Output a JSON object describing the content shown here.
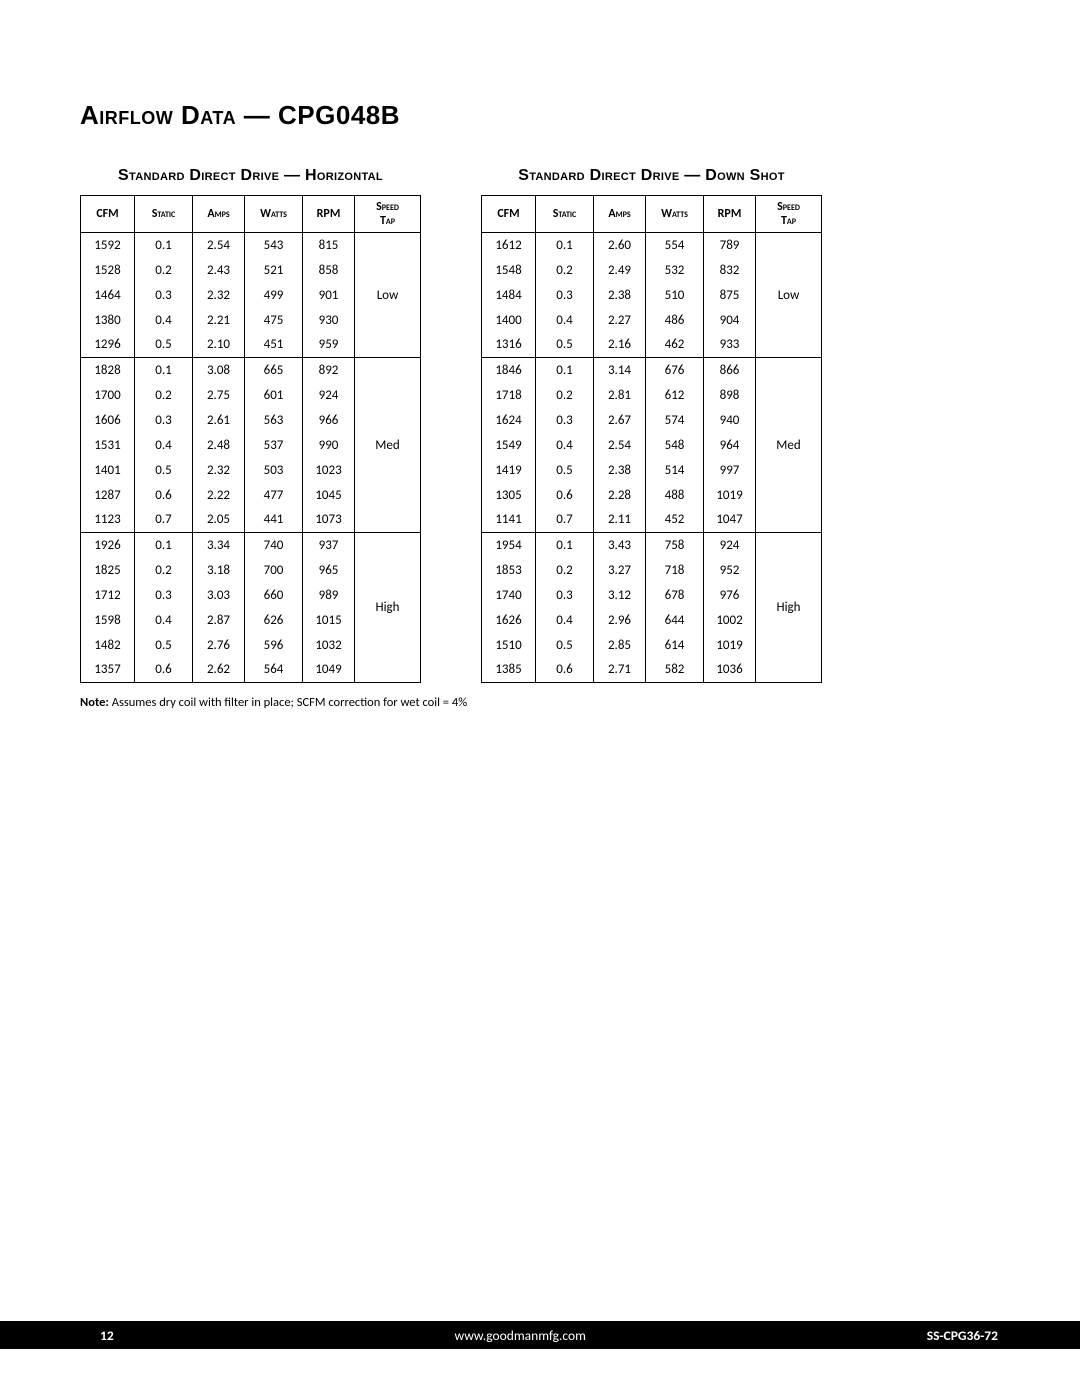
{
  "title": "Airflow Data — CPG048B",
  "left": {
    "title": "Standard Direct Drive — Horizontal",
    "columns": [
      "CFM",
      "Static",
      "Amps",
      "Watts",
      "RPM",
      "Speed Tap"
    ],
    "groups": [
      {
        "tap": "Low",
        "rows": [
          [
            "1592",
            "0.1",
            "2.54",
            "543",
            "815"
          ],
          [
            "1528",
            "0.2",
            "2.43",
            "521",
            "858"
          ],
          [
            "1464",
            "0.3",
            "2.32",
            "499",
            "901"
          ],
          [
            "1380",
            "0.4",
            "2.21",
            "475",
            "930"
          ],
          [
            "1296",
            "0.5",
            "2.10",
            "451",
            "959"
          ]
        ]
      },
      {
        "tap": "Med",
        "rows": [
          [
            "1828",
            "0.1",
            "3.08",
            "665",
            "892"
          ],
          [
            "1700",
            "0.2",
            "2.75",
            "601",
            "924"
          ],
          [
            "1606",
            "0.3",
            "2.61",
            "563",
            "966"
          ],
          [
            "1531",
            "0.4",
            "2.48",
            "537",
            "990"
          ],
          [
            "1401",
            "0.5",
            "2.32",
            "503",
            "1023"
          ],
          [
            "1287",
            "0.6",
            "2.22",
            "477",
            "1045"
          ],
          [
            "1123",
            "0.7",
            "2.05",
            "441",
            "1073"
          ]
        ]
      },
      {
        "tap": "High",
        "rows": [
          [
            "1926",
            "0.1",
            "3.34",
            "740",
            "937"
          ],
          [
            "1825",
            "0.2",
            "3.18",
            "700",
            "965"
          ],
          [
            "1712",
            "0.3",
            "3.03",
            "660",
            "989"
          ],
          [
            "1598",
            "0.4",
            "2.87",
            "626",
            "1015"
          ],
          [
            "1482",
            "0.5",
            "2.76",
            "596",
            "1032"
          ],
          [
            "1357",
            "0.6",
            "2.62",
            "564",
            "1049"
          ]
        ]
      }
    ]
  },
  "right": {
    "title": "Standard Direct Drive — Down Shot",
    "columns": [
      "CFM",
      "Static",
      "Amps",
      "Watts",
      "RPM",
      "Speed Tap"
    ],
    "groups": [
      {
        "tap": "Low",
        "rows": [
          [
            "1612",
            "0.1",
            "2.60",
            "554",
            "789"
          ],
          [
            "1548",
            "0.2",
            "2.49",
            "532",
            "832"
          ],
          [
            "1484",
            "0.3",
            "2.38",
            "510",
            "875"
          ],
          [
            "1400",
            "0.4",
            "2.27",
            "486",
            "904"
          ],
          [
            "1316",
            "0.5",
            "2.16",
            "462",
            "933"
          ]
        ]
      },
      {
        "tap": "Med",
        "rows": [
          [
            "1846",
            "0.1",
            "3.14",
            "676",
            "866"
          ],
          [
            "1718",
            "0.2",
            "2.81",
            "612",
            "898"
          ],
          [
            "1624",
            "0.3",
            "2.67",
            "574",
            "940"
          ],
          [
            "1549",
            "0.4",
            "2.54",
            "548",
            "964"
          ],
          [
            "1419",
            "0.5",
            "2.38",
            "514",
            "997"
          ],
          [
            "1305",
            "0.6",
            "2.28",
            "488",
            "1019"
          ],
          [
            "1141",
            "0.7",
            "2.11",
            "452",
            "1047"
          ]
        ]
      },
      {
        "tap": "High",
        "rows": [
          [
            "1954",
            "0.1",
            "3.43",
            "758",
            "924"
          ],
          [
            "1853",
            "0.2",
            "3.27",
            "718",
            "952"
          ],
          [
            "1740",
            "0.3",
            "3.12",
            "678",
            "976"
          ],
          [
            "1626",
            "0.4",
            "2.96",
            "644",
            "1002"
          ],
          [
            "1510",
            "0.5",
            "2.85",
            "614",
            "1019"
          ],
          [
            "1385",
            "0.6",
            "2.71",
            "582",
            "1036"
          ]
        ]
      }
    ]
  },
  "note_label": "Note:",
  "note_text": " Assumes dry coil with filter in place; SCFM correction for wet coil = 4%",
  "footer": {
    "page": "12",
    "url": "www.goodmanmfg.com",
    "doc": "SS-CPG36-72"
  },
  "col_classes": [
    "c-cfm",
    "c-stat",
    "c-amps",
    "c-watts",
    "c-rpm",
    "c-tap"
  ]
}
